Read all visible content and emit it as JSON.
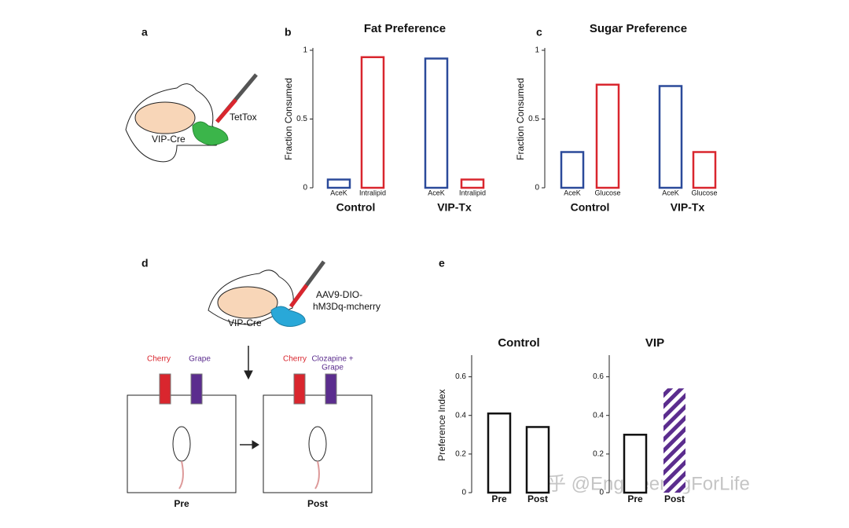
{
  "panel_labels": [
    "a",
    "b",
    "c",
    "d",
    "e"
  ],
  "panel_a": {
    "mouse_label": "VIP-Cre",
    "injection_label": "TetTox"
  },
  "panel_d": {
    "mouse_label": "VIP-Cre",
    "injection_label": [
      "AAV9-DIO-",
      "hM3Dq-mcherry"
    ],
    "pre": {
      "bottles": [
        "Cherry",
        "Grape"
      ],
      "label": "Pre"
    },
    "post": {
      "bottles": [
        "Cherry",
        [
          "Clozapine +",
          "Grape"
        ]
      ],
      "label": "Post"
    }
  },
  "watermark": "知乎 @EngineeringForLife",
  "chart_data": [
    {
      "type": "bar",
      "title": "Fat Preference",
      "y_label": "Fraction Consumed",
      "categories": [
        "AceK",
        "Intralipid",
        "AceK",
        "Intralipid"
      ],
      "group_labels": [
        "Control",
        "VIP-Tx"
      ],
      "values": [
        0.06,
        0.95,
        0.94,
        0.06
      ],
      "colors": [
        "#2b4a9a",
        "#d9262e",
        "#2b4a9a",
        "#d9262e"
      ],
      "ylim": [
        0,
        1
      ],
      "yticks": [
        0,
        0.5,
        1
      ]
    },
    {
      "type": "bar",
      "title": "Sugar Preference",
      "y_label": "Fraction Consumed",
      "categories": [
        "AceK",
        "Glucose",
        "AceK",
        "Glucose"
      ],
      "group_labels": [
        "Control",
        "VIP-Tx"
      ],
      "values": [
        0.26,
        0.75,
        0.74,
        0.26
      ],
      "colors": [
        "#2b4a9a",
        "#d9262e",
        "#2b4a9a",
        "#d9262e"
      ],
      "ylim": [
        0,
        1
      ],
      "yticks": [
        0,
        0.5,
        1
      ]
    },
    {
      "type": "bar",
      "title": "Control",
      "y_label": "Preference Index",
      "categories": [
        "Pre",
        "Post"
      ],
      "values": [
        0.41,
        0.34
      ],
      "colors": [
        "#111111",
        "#111111"
      ],
      "hatch": [
        false,
        false
      ],
      "ylim": [
        0,
        0.7
      ],
      "yticks": [
        0,
        0.2,
        0.4,
        0.6
      ]
    },
    {
      "type": "bar",
      "title": "VIP",
      "categories": [
        "Pre",
        "Post"
      ],
      "values": [
        0.3,
        0.54
      ],
      "colors": [
        "#111111",
        "#5b2d8e"
      ],
      "hatch": [
        false,
        true
      ],
      "ylim": [
        0,
        0.7
      ],
      "yticks": [
        0,
        0.2,
        0.4,
        0.6
      ]
    }
  ]
}
